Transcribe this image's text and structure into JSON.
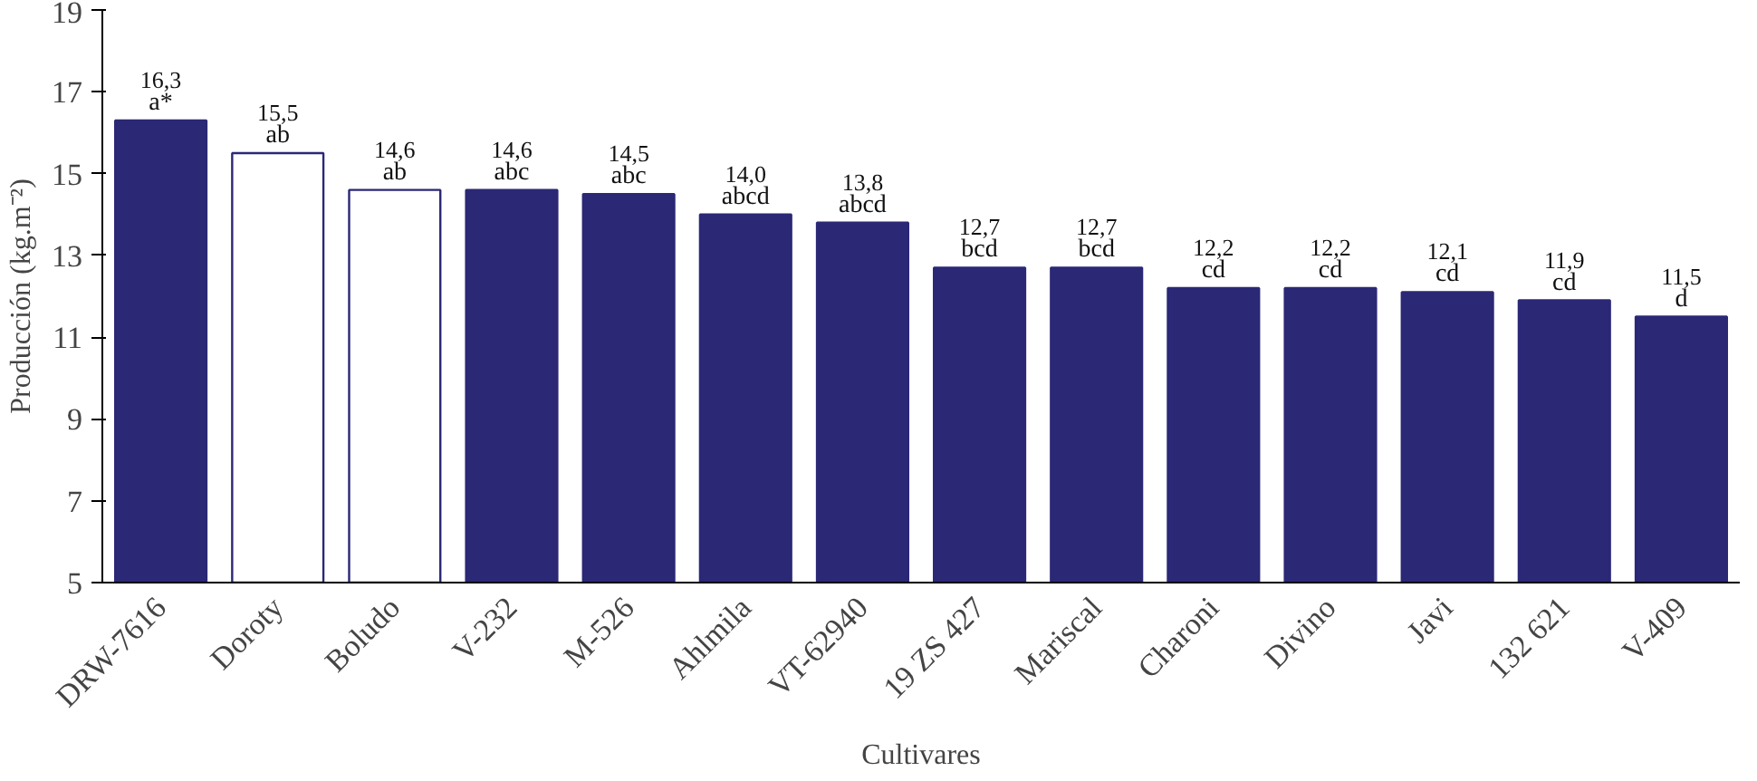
{
  "chart_data": {
    "type": "bar",
    "xlabel": "Cultivares",
    "ylabel": "Producción (kg.m⁻²)",
    "categories": [
      "DRW-7616",
      "Doroty",
      "Boludo",
      "V-232",
      "M-526",
      "Ahlmila",
      "VT-62940",
      "19 ZS 427",
      "Mariscal",
      "Charoni",
      "Divino",
      "Javi",
      "132 621",
      "V-409"
    ],
    "values": [
      16.3,
      15.5,
      14.6,
      14.6,
      14.5,
      14.0,
      13.8,
      12.7,
      12.7,
      12.2,
      12.2,
      12.1,
      11.9,
      11.5
    ],
    "colors": [
      "#2b2876",
      "#ffffff",
      "#ffffff",
      "#2b2876",
      "#2b2876",
      "#2b2876",
      "#2b2876",
      "#2b2876",
      "#2b2876",
      "#2b2876",
      "#2b2876",
      "#2b2876",
      "#2b2876",
      "#2b2876"
    ],
    "value_labels": [
      "16,3",
      "15,5",
      "14,6",
      "14,6",
      "14,5",
      "14,0",
      "13,8",
      "12,7",
      "12,7",
      "12,2",
      "12,2",
      "12,1",
      "11,9",
      "11,5"
    ],
    "annotations": [
      {
        "text": "a*",
        "x": "DRW-7616",
        "y": 16.3
      },
      {
        "text": "ab",
        "x": "Doroty",
        "y": 15.5
      },
      {
        "text": "ab",
        "x": "Boludo",
        "y": 14.6
      },
      {
        "text": "abc",
        "x": "V-232",
        "y": 14.6
      },
      {
        "text": "abc",
        "x": "M-526",
        "y": 14.5
      },
      {
        "text": "abcd",
        "x": "Ahlmila",
        "y": 14.0
      },
      {
        "text": "abcd",
        "x": "VT-62940",
        "y": 13.8
      },
      {
        "text": "bcd",
        "x": "19 ZS 427",
        "y": 12.7
      },
      {
        "text": "bcd",
        "x": "Mariscal",
        "y": 12.7
      },
      {
        "text": "cd",
        "x": "Charoni",
        "y": 12.2
      },
      {
        "text": "cd",
        "x": "Divino",
        "y": 12.2
      },
      {
        "text": "cd",
        "x": "Javi",
        "y": 12.1
      },
      {
        "text": "cd",
        "x": "132 621",
        "y": 11.9
      },
      {
        "text": "d",
        "x": "V-409",
        "y": 11.5
      }
    ],
    "ylim": [
      5,
      19
    ],
    "yticks": [
      5,
      7,
      9,
      11,
      13,
      15,
      17,
      19
    ]
  }
}
